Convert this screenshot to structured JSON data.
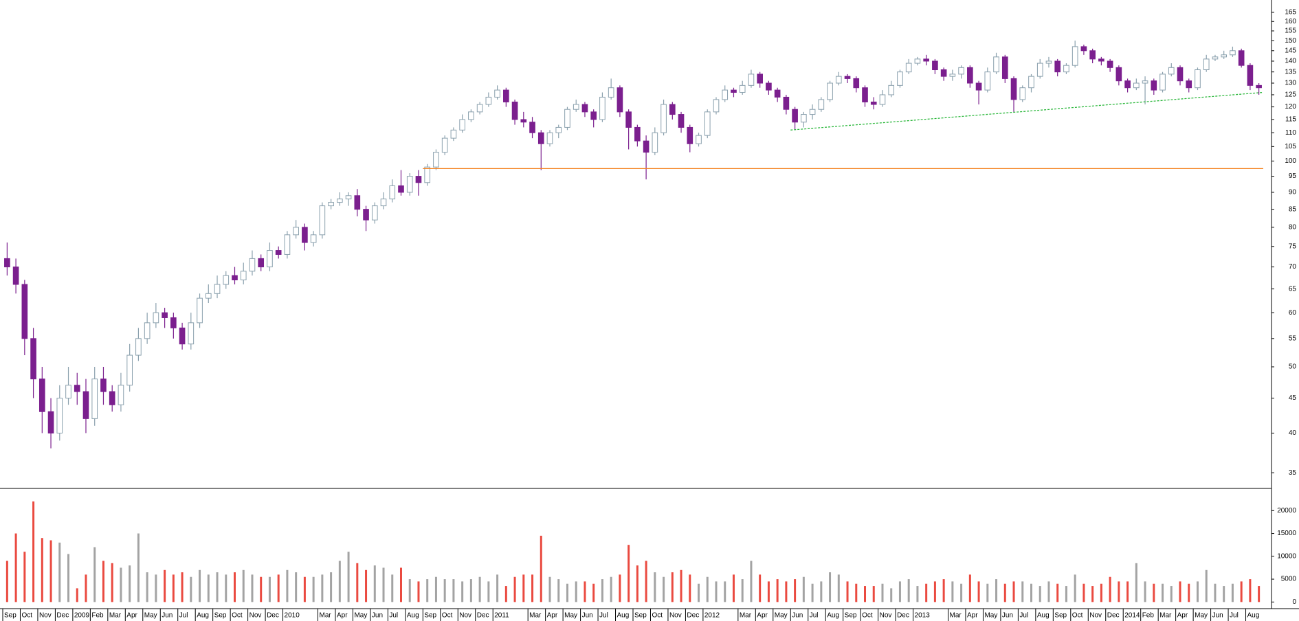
{
  "chart_data": [
    {
      "type": "candlestick",
      "log_scale": true,
      "up_color": "#8aa0ad",
      "down_color": "#7b1f8e",
      "ylim": [
        33.2,
        172
      ],
      "yticks": [
        35,
        40,
        45,
        50,
        55,
        60,
        65,
        70,
        75,
        80,
        85,
        90,
        95,
        100,
        105,
        110,
        115,
        120,
        125,
        130,
        135,
        140,
        145,
        150,
        155,
        160,
        165
      ],
      "open": [
        72,
        70,
        66,
        55,
        48,
        43,
        40,
        45,
        47,
        46,
        42,
        48,
        46,
        44,
        47,
        52,
        55,
        58,
        60,
        59,
        57,
        54,
        58,
        63,
        64,
        66,
        68,
        67,
        69,
        72,
        70,
        74,
        73,
        78,
        80,
        76,
        78,
        86,
        87,
        88,
        89,
        85,
        82,
        86,
        88,
        92,
        90,
        95,
        93,
        98,
        103,
        108,
        111,
        115,
        118,
        121,
        124,
        127,
        122,
        115,
        114,
        110,
        106,
        110,
        112,
        119,
        121,
        118,
        115,
        124,
        128,
        118,
        112,
        107,
        103,
        110,
        121,
        117,
        112,
        106,
        109,
        118,
        123,
        127,
        126,
        129,
        134,
        130,
        127,
        124,
        119,
        114,
        117,
        119,
        123,
        130,
        133,
        132,
        128,
        122,
        121,
        125,
        129,
        135,
        139,
        141,
        140,
        136,
        133,
        134,
        137,
        130,
        127,
        135,
        142,
        132,
        123,
        128,
        133,
        139,
        140,
        135,
        138,
        147,
        145,
        141,
        140,
        137,
        131,
        128,
        130,
        131,
        127,
        134,
        137,
        131,
        128,
        136,
        141,
        142,
        143,
        145,
        138,
        129
      ],
      "high": [
        76,
        72,
        67,
        57,
        50,
        45,
        47,
        50,
        49,
        48,
        50,
        50,
        47,
        49,
        54,
        57,
        60,
        62,
        61,
        60,
        58,
        60,
        64,
        66,
        68,
        69,
        70,
        71,
        74,
        73,
        76,
        75,
        79,
        82,
        81,
        79,
        87,
        88,
        90,
        90,
        91,
        86,
        87,
        90,
        94,
        97,
        96,
        97,
        99,
        104,
        109,
        112,
        117,
        119,
        122,
        126,
        129,
        128,
        123,
        118,
        116,
        111,
        111,
        113,
        120,
        123,
        122,
        119,
        126,
        132,
        129,
        119,
        113,
        109,
        112,
        123,
        122,
        118,
        113,
        110,
        119,
        124,
        129,
        128,
        131,
        136,
        135,
        131,
        128,
        125,
        120,
        118,
        121,
        124,
        131,
        135,
        134,
        133,
        129,
        124,
        127,
        131,
        136,
        141,
        142,
        143,
        141,
        137,
        136,
        138,
        138,
        131,
        137,
        144,
        143,
        133,
        129,
        134,
        141,
        142,
        141,
        139,
        150,
        148,
        146,
        142,
        141,
        138,
        132,
        132,
        133,
        132,
        135,
        139,
        138,
        132,
        137,
        143,
        143,
        145,
        147,
        146,
        139,
        130
      ],
      "low": [
        68,
        64,
        52,
        45,
        40,
        38,
        39,
        44,
        44,
        40,
        41,
        44,
        43,
        43,
        46,
        51,
        54,
        57,
        57,
        55,
        53,
        53,
        57,
        62,
        63,
        65,
        66,
        66,
        68,
        69,
        69,
        72,
        72,
        77,
        74,
        75,
        77,
        85,
        86,
        86,
        83,
        79,
        81,
        85,
        87,
        89,
        89,
        89,
        92,
        97,
        102,
        107,
        110,
        114,
        117,
        120,
        123,
        120,
        113,
        112,
        108,
        97,
        105,
        108,
        111,
        118,
        116,
        112,
        114,
        123,
        116,
        104,
        105,
        94,
        102,
        109,
        115,
        110,
        103,
        105,
        108,
        117,
        122,
        124,
        125,
        128,
        128,
        125,
        122,
        117,
        111,
        112,
        115,
        118,
        122,
        129,
        130,
        126,
        120,
        119,
        120,
        124,
        128,
        134,
        138,
        138,
        134,
        131,
        131,
        132,
        128,
        121,
        126,
        134,
        130,
        118,
        122,
        126,
        132,
        137,
        133,
        134,
        137,
        143,
        139,
        138,
        135,
        129,
        126,
        127,
        121,
        125,
        126,
        133,
        129,
        126,
        127,
        135,
        140,
        141,
        142,
        137,
        127,
        125
      ],
      "close": [
        70,
        66,
        55,
        48,
        43,
        40,
        45,
        47,
        46,
        42,
        48,
        46,
        44,
        47,
        52,
        55,
        58,
        60,
        59,
        57,
        54,
        58,
        63,
        64,
        66,
        68,
        67,
        69,
        72,
        70,
        74,
        73,
        78,
        80,
        76,
        78,
        86,
        87,
        88,
        89,
        85,
        82,
        86,
        88,
        92,
        90,
        95,
        93,
        98,
        103,
        108,
        111,
        115,
        118,
        121,
        124,
        127,
        122,
        115,
        114,
        110,
        106,
        110,
        112,
        119,
        121,
        118,
        115,
        124,
        128,
        118,
        112,
        107,
        103,
        110,
        121,
        117,
        112,
        106,
        109,
        118,
        123,
        127,
        126,
        129,
        134,
        130,
        127,
        124,
        119,
        114,
        117,
        119,
        123,
        130,
        133,
        132,
        128,
        122,
        121,
        125,
        129,
        135,
        139,
        141,
        140,
        136,
        133,
        134,
        137,
        130,
        127,
        135,
        142,
        132,
        123,
        128,
        133,
        139,
        140,
        135,
        138,
        147,
        145,
        141,
        140,
        137,
        131,
        128,
        130,
        131,
        127,
        134,
        137,
        131,
        128,
        136,
        141,
        142,
        143,
        145,
        138,
        129,
        128
      ],
      "xticks": [
        {
          "value": 0,
          "label": "Sep"
        },
        {
          "value": 2,
          "label": "Oct"
        },
        {
          "value": 4,
          "label": "Nov"
        },
        {
          "value": 6,
          "label": "Dec"
        },
        {
          "value": 8,
          "label": "2009"
        },
        {
          "value": 10,
          "label": "Feb"
        },
        {
          "value": 12,
          "label": "Mar"
        },
        {
          "value": 14,
          "label": "Apr"
        },
        {
          "value": 16,
          "label": "May"
        },
        {
          "value": 18,
          "label": "Jun"
        },
        {
          "value": 20,
          "label": "Jul"
        },
        {
          "value": 22,
          "label": "Aug"
        },
        {
          "value": 24,
          "label": "Sep"
        },
        {
          "value": 26,
          "label": "Oct"
        },
        {
          "value": 28,
          "label": "Nov"
        },
        {
          "value": 30,
          "label": "Dec"
        },
        {
          "value": 32,
          "label": "2010"
        },
        {
          "value": 36,
          "label": "Mar"
        },
        {
          "value": 38,
          "label": "Apr"
        },
        {
          "value": 40,
          "label": "May"
        },
        {
          "value": 42,
          "label": "Jun"
        },
        {
          "value": 44,
          "label": "Jul"
        },
        {
          "value": 46,
          "label": "Aug"
        },
        {
          "value": 48,
          "label": "Sep"
        },
        {
          "value": 50,
          "label": "Oct"
        },
        {
          "value": 52,
          "label": "Nov"
        },
        {
          "value": 54,
          "label": "Dec"
        },
        {
          "value": 56,
          "label": "2011"
        },
        {
          "value": 60,
          "label": "Mar"
        },
        {
          "value": 62,
          "label": "Apr"
        },
        {
          "value": 64,
          "label": "May"
        },
        {
          "value": 66,
          "label": "Jun"
        },
        {
          "value": 68,
          "label": "Jul"
        },
        {
          "value": 70,
          "label": "Aug"
        },
        {
          "value": 72,
          "label": "Sep"
        },
        {
          "value": 74,
          "label": "Oct"
        },
        {
          "value": 76,
          "label": "Nov"
        },
        {
          "value": 78,
          "label": "Dec"
        },
        {
          "value": 80,
          "label": "2012"
        },
        {
          "value": 84,
          "label": "Mar"
        },
        {
          "value": 86,
          "label": "Apr"
        },
        {
          "value": 88,
          "label": "May"
        },
        {
          "value": 90,
          "label": "Jun"
        },
        {
          "value": 92,
          "label": "Jul"
        },
        {
          "value": 94,
          "label": "Aug"
        },
        {
          "value": 96,
          "label": "Sep"
        },
        {
          "value": 98,
          "label": "Oct"
        },
        {
          "value": 100,
          "label": "Nov"
        },
        {
          "value": 102,
          "label": "Dec"
        },
        {
          "value": 104,
          "label": "2013"
        },
        {
          "value": 108,
          "label": "Mar"
        },
        {
          "value": 110,
          "label": "Apr"
        },
        {
          "value": 112,
          "label": "May"
        },
        {
          "value": 114,
          "label": "Jun"
        },
        {
          "value": 116,
          "label": "Jul"
        },
        {
          "value": 118,
          "label": "Aug"
        },
        {
          "value": 120,
          "label": "Sep"
        },
        {
          "value": 122,
          "label": "Oct"
        },
        {
          "value": 124,
          "label": "Nov"
        },
        {
          "value": 126,
          "label": "Dec"
        },
        {
          "value": 128,
          "label": "2014"
        },
        {
          "value": 130,
          "label": "Feb"
        },
        {
          "value": 132,
          "label": "Mar"
        },
        {
          "value": 134,
          "label": "Apr"
        },
        {
          "value": 136,
          "label": "May"
        },
        {
          "value": 138,
          "label": "Jun"
        },
        {
          "value": 140,
          "label": "Jul"
        },
        {
          "value": 142,
          "label": "Aug"
        }
      ],
      "lines": [
        {
          "x": [
            48,
            144
          ],
          "y": [
            97.5,
            97.5
          ],
          "color": "#f58220",
          "dashed": false
        },
        {
          "x": [
            90,
            144
          ],
          "y": [
            111,
            126
          ],
          "color": "#2db83d",
          "dashed": true
        }
      ]
    },
    {
      "type": "volume",
      "up_color": "#a3a3a3",
      "down_color": "#ea4a40",
      "ylim": [
        -1450,
        24700
      ],
      "yticks": [
        0,
        5000,
        10000,
        15000,
        20000
      ],
      "values": [
        9000,
        15000,
        11000,
        22000,
        14000,
        13500,
        13000,
        10500,
        3000,
        6000,
        12000,
        9000,
        8500,
        7500,
        8000,
        15000,
        6500,
        6000,
        7000,
        6000,
        6500,
        5500,
        7000,
        6000,
        6500,
        6000,
        6500,
        7000,
        6000,
        5500,
        5500,
        6000,
        7000,
        6500,
        5500,
        5500,
        6000,
        6500,
        9000,
        11000,
        8500,
        7000,
        8000,
        7500,
        6000,
        7500,
        5000,
        4500,
        5000,
        5500,
        5000,
        5000,
        4500,
        5000,
        5500,
        4500,
        6000,
        3500,
        5500,
        6000,
        6000,
        14500,
        5500,
        5000,
        4000,
        4500,
        4500,
        4000,
        5000,
        5500,
        6000,
        12500,
        8000,
        9000,
        6500,
        5500,
        6500,
        7000,
        6000,
        4000,
        5500,
        4500,
        4500,
        6000,
        5000,
        9000,
        6000,
        4500,
        5000,
        4500,
        5000,
        5500,
        4000,
        4500,
        6500,
        6000,
        4500,
        4000,
        3500,
        3500,
        4000,
        3000,
        4500,
        5000,
        3500,
        4000,
        4500,
        5000,
        4500,
        4000,
        6000,
        4500,
        4000,
        5000,
        4000,
        4500,
        4500,
        4000,
        3500,
        4500,
        4000,
        3500,
        6000,
        4000,
        3500,
        4000,
        5500,
        4500,
        4500,
        8500,
        4500,
        4000,
        4000,
        3500,
        4500,
        4000,
        4500,
        7000,
        4000,
        3500,
        4000,
        4500,
        5000,
        3500
      ]
    }
  ]
}
